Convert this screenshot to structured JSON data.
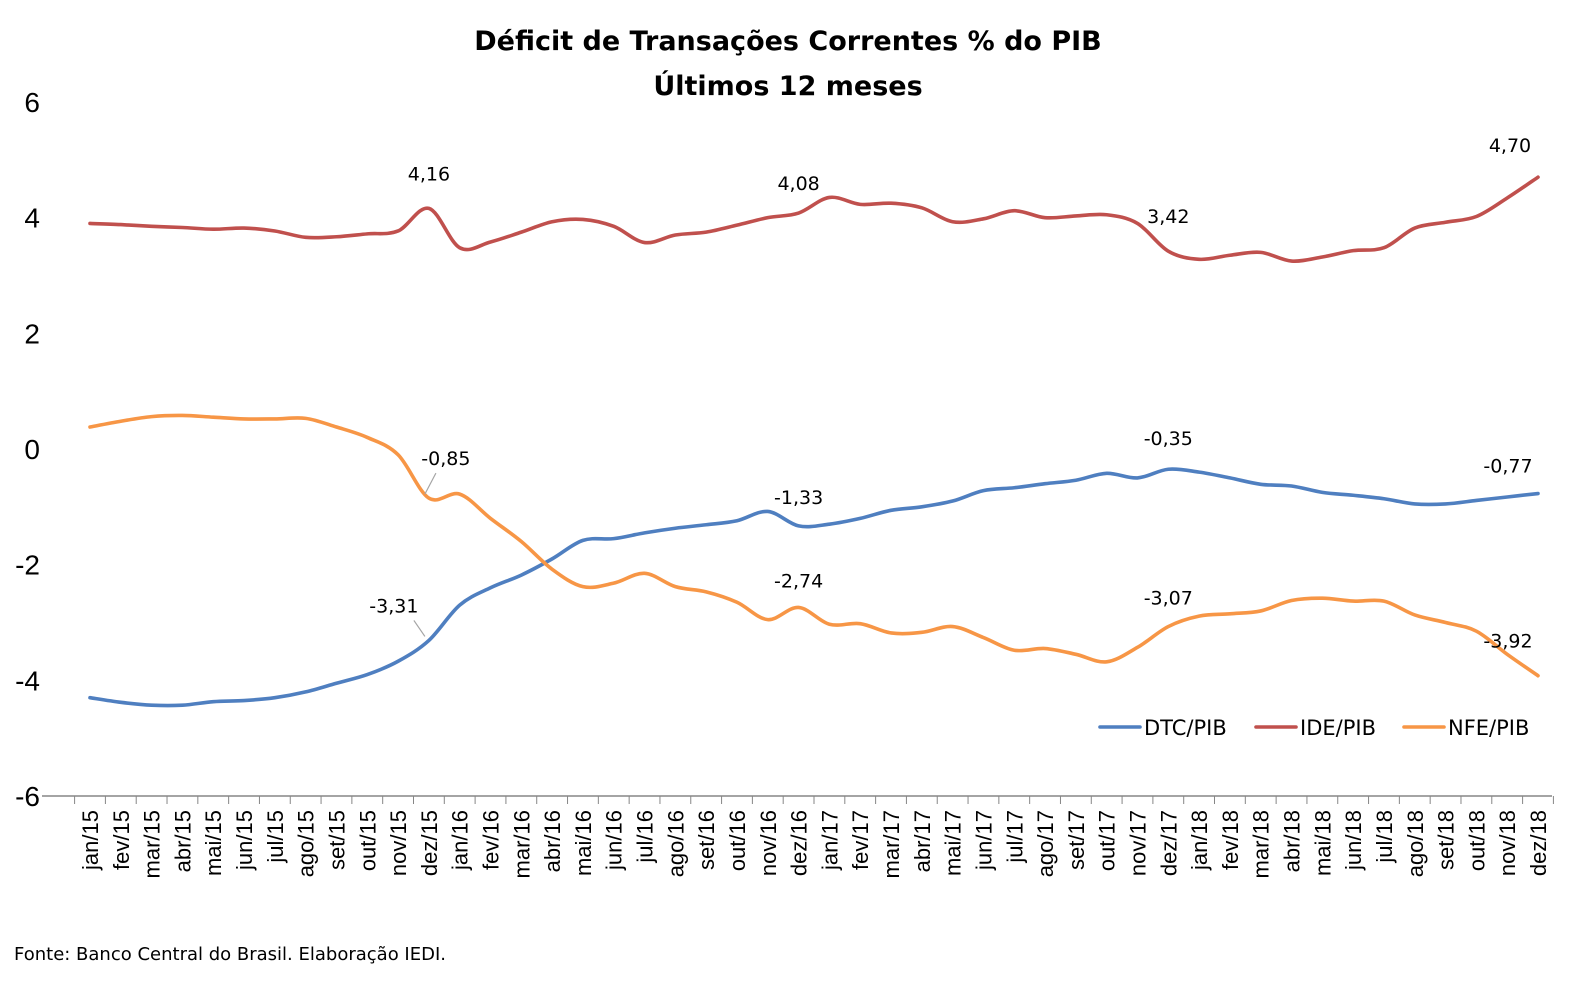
{
  "chart_data": {
    "type": "line",
    "title": "Déficit de Transações Correntes % do PIB",
    "subtitle": "Últimos 12 meses",
    "xlabel": "",
    "ylabel": "",
    "ylim": [
      -6,
      6
    ],
    "yticks": [
      6,
      4,
      2,
      0,
      -2,
      -4,
      -6
    ],
    "grid": false,
    "legend_position": "bottom-right",
    "categories": [
      "jan/15",
      "fev/15",
      "mar/15",
      "abr/15",
      "mai/15",
      "jun/15",
      "jul/15",
      "ago/15",
      "set/15",
      "out/15",
      "nov/15",
      "dez/15",
      "jan/16",
      "fev/16",
      "mar/16",
      "abr/16",
      "mai/16",
      "jun/16",
      "jul/16",
      "ago/16",
      "set/16",
      "out/16",
      "nov/16",
      "dez/16",
      "jan/17",
      "fev/17",
      "mar/17",
      "abr/17",
      "mai/17",
      "jun/17",
      "jul/17",
      "ago/17",
      "set/17",
      "out/17",
      "nov/17",
      "dez/17",
      "jan/18",
      "fev/18",
      "mar/18",
      "abr/18",
      "mai/18",
      "jun/18",
      "jul/18",
      "ago/18",
      "set/18",
      "out/18",
      "nov/18",
      "dez/18"
    ],
    "series": [
      {
        "name": "DTC/PIB",
        "color": "#4f7fc0",
        "values": [
          -4.3,
          -4.38,
          -4.43,
          -4.43,
          -4.37,
          -4.35,
          -4.3,
          -4.2,
          -4.05,
          -3.9,
          -3.67,
          -3.31,
          -2.7,
          -2.4,
          -2.18,
          -1.9,
          -1.58,
          -1.55,
          -1.45,
          -1.37,
          -1.31,
          -1.24,
          -1.08,
          -1.33,
          -1.3,
          -1.2,
          -1.06,
          -1.0,
          -0.9,
          -0.72,
          -0.67,
          -0.6,
          -0.54,
          -0.42,
          -0.5,
          -0.35,
          -0.4,
          -0.5,
          -0.61,
          -0.64,
          -0.75,
          -0.8,
          -0.86,
          -0.95,
          -0.95,
          -0.89,
          -0.83,
          -0.77
        ]
      },
      {
        "name": "IDE/PIB",
        "color": "#c0504d",
        "values": [
          3.9,
          3.88,
          3.85,
          3.83,
          3.8,
          3.82,
          3.77,
          3.66,
          3.67,
          3.72,
          3.77,
          4.16,
          3.48,
          3.58,
          3.75,
          3.93,
          3.97,
          3.85,
          3.57,
          3.7,
          3.75,
          3.87,
          4.0,
          4.08,
          4.35,
          4.23,
          4.25,
          4.17,
          3.93,
          3.98,
          4.12,
          4.0,
          4.03,
          4.05,
          3.9,
          3.42,
          3.28,
          3.35,
          3.4,
          3.25,
          3.32,
          3.43,
          3.48,
          3.82,
          3.92,
          4.02,
          4.34,
          4.7
        ]
      },
      {
        "name": "NFE/PIB",
        "color": "#f79646",
        "values": [
          0.38,
          0.48,
          0.56,
          0.58,
          0.55,
          0.52,
          0.52,
          0.53,
          0.38,
          0.2,
          -0.1,
          -0.85,
          -0.78,
          -1.2,
          -1.6,
          -2.08,
          -2.38,
          -2.32,
          -2.15,
          -2.38,
          -2.47,
          -2.65,
          -2.95,
          -2.74,
          -3.03,
          -3.02,
          -3.18,
          -3.17,
          -3.07,
          -3.26,
          -3.48,
          -3.45,
          -3.55,
          -3.68,
          -3.43,
          -3.07,
          -2.89,
          -2.85,
          -2.8,
          -2.62,
          -2.58,
          -2.63,
          -2.63,
          -2.87,
          -3.0,
          -3.15,
          -3.55,
          -3.92
        ]
      }
    ],
    "annotations": [
      {
        "series": 0,
        "index": 11,
        "text": "-3,31"
      },
      {
        "series": 0,
        "index": 23,
        "text": "-1,33"
      },
      {
        "series": 0,
        "index": 35,
        "text": "-0,35"
      },
      {
        "series": 0,
        "index": 47,
        "text": "-0,77"
      },
      {
        "series": 1,
        "index": 11,
        "text": "4,16"
      },
      {
        "series": 1,
        "index": 23,
        "text": "4,08"
      },
      {
        "series": 1,
        "index": 35,
        "text": "3,42"
      },
      {
        "series": 1,
        "index": 47,
        "text": "4,70"
      },
      {
        "series": 2,
        "index": 11,
        "text": "-0,85"
      },
      {
        "series": 2,
        "index": 23,
        "text": "-2,74"
      },
      {
        "series": 2,
        "index": 35,
        "text": "-3,07"
      },
      {
        "series": 2,
        "index": 47,
        "text": "-3,92"
      }
    ],
    "source": "Fonte: Banco Central do Brasil. Elaboração IEDI."
  }
}
